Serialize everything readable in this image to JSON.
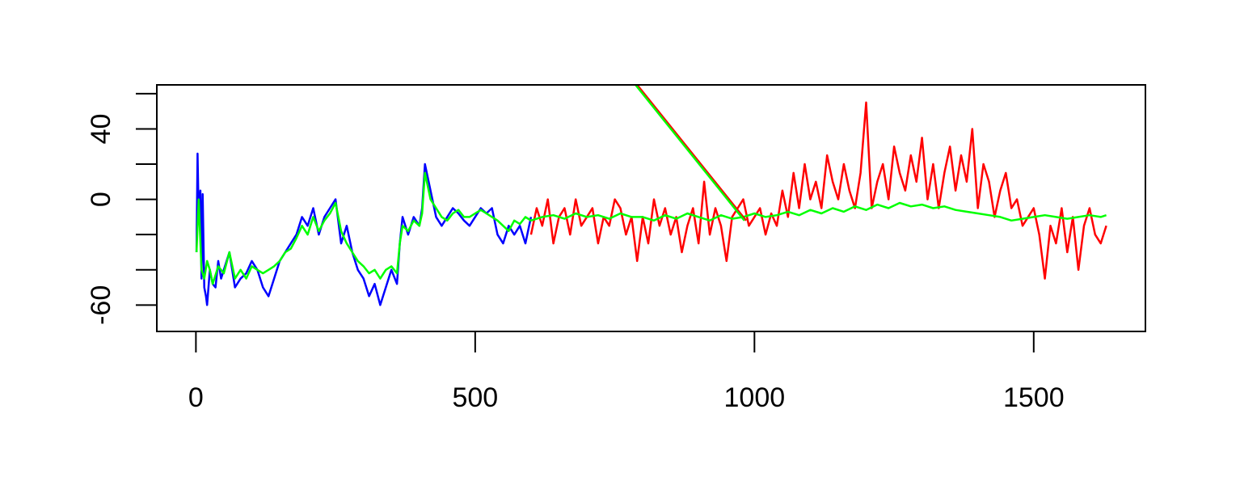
{
  "chart_data": {
    "type": "line",
    "title": "",
    "xlabel": "",
    "ylabel": "",
    "xlim": [
      -70,
      1700
    ],
    "ylim": [
      -75,
      65
    ],
    "x_ticks": [
      {
        "value": 0,
        "label": "0"
      },
      {
        "value": 500,
        "label": "500"
      },
      {
        "value": 1000,
        "label": "1000"
      },
      {
        "value": 1500,
        "label": "1500"
      }
    ],
    "y_ticks": [
      {
        "value": -60,
        "label": "-60",
        "labeled": true
      },
      {
        "value": -40,
        "label": "",
        "labeled": false
      },
      {
        "value": -20,
        "label": "",
        "labeled": false
      },
      {
        "value": 0,
        "label": "0",
        "labeled": true
      },
      {
        "value": 20,
        "label": "",
        "labeled": false
      },
      {
        "value": 40,
        "label": "40",
        "labeled": true
      },
      {
        "value": 60,
        "label": "",
        "labeled": false
      }
    ],
    "grid": false,
    "legend": "none",
    "series": [
      {
        "color": "#0000ff",
        "x": [
          1,
          3,
          5,
          8,
          10,
          12,
          15,
          18,
          20,
          25,
          30,
          35,
          40,
          45,
          50,
          60,
          70,
          80,
          90,
          100,
          110,
          120,
          130,
          140,
          150,
          160,
          170,
          180,
          190,
          200,
          210,
          220,
          230,
          240,
          250,
          260,
          270,
          280,
          290,
          300,
          310,
          320,
          330,
          340,
          350,
          360,
          365,
          370,
          380,
          390,
          400,
          405,
          410,
          420,
          430,
          440,
          450,
          460,
          470,
          480,
          490,
          500,
          510,
          520,
          530,
          540,
          550,
          560,
          570,
          580,
          590,
          600
        ],
        "y": [
          -30,
          26,
          -10,
          5,
          -45,
          3,
          -50,
          -55,
          -60,
          -40,
          -48,
          -50,
          -35,
          -45,
          -40,
          -30,
          -50,
          -45,
          -42,
          -35,
          -40,
          -50,
          -55,
          -45,
          -35,
          -30,
          -25,
          -20,
          -10,
          -15,
          -5,
          -20,
          -10,
          -5,
          0,
          -25,
          -15,
          -30,
          -40,
          -45,
          -55,
          -48,
          -60,
          -50,
          -40,
          -48,
          -25,
          -10,
          -20,
          -10,
          -15,
          -5,
          20,
          5,
          -10,
          -15,
          -10,
          -5,
          -8,
          -12,
          -15,
          -10,
          -5,
          -8,
          -5,
          -20,
          -25,
          -15,
          -20,
          -15,
          -25,
          -10
        ]
      },
      {
        "color": "#ff0000",
        "x": [
          600,
          610,
          620,
          630,
          640,
          650,
          660,
          670,
          680,
          690,
          700,
          710,
          720,
          730,
          740,
          750,
          760,
          770,
          780,
          790,
          800,
          810,
          820,
          830,
          840,
          850,
          860,
          870,
          880,
          890,
          900,
          910,
          920,
          930,
          940,
          950,
          960,
          970,
          980,
          990,
          1000,
          1010,
          1020,
          1030,
          1040,
          1050,
          1060,
          1070,
          1080,
          1090,
          1100,
          1110,
          1120,
          1130,
          1140,
          1150,
          1160,
          1170,
          1180,
          1190,
          1200,
          1210,
          1220,
          1230,
          1240,
          1250,
          1260,
          1270,
          1280,
          1290,
          1300,
          1310,
          1320,
          1330,
          1340,
          1350,
          1360,
          1370,
          1380,
          1390,
          1400,
          1410,
          1420,
          1430,
          1440,
          1450,
          1460,
          1470,
          1480,
          1490,
          1500,
          1510,
          1520,
          1530,
          1540,
          1550,
          1560,
          1570,
          1580,
          1590,
          1600,
          1610,
          1620,
          1630
        ],
        "y": [
          -20,
          -5,
          -15,
          0,
          -25,
          -10,
          -5,
          -20,
          0,
          -15,
          -10,
          -5,
          -25,
          -10,
          -15,
          0,
          -5,
          -20,
          -10,
          -35,
          -10,
          -25,
          0,
          -15,
          -5,
          -20,
          -10,
          -30,
          -15,
          -5,
          -25,
          10,
          -20,
          -5,
          -15,
          -35,
          -10,
          -5,
          0,
          -15,
          -10,
          -5,
          -20,
          -8,
          -15,
          5,
          -10,
          15,
          -5,
          20,
          0,
          10,
          -5,
          25,
          10,
          0,
          20,
          5,
          -5,
          15,
          55,
          -5,
          10,
          20,
          0,
          30,
          15,
          5,
          25,
          10,
          35,
          0,
          20,
          -5,
          15,
          30,
          5,
          25,
          10,
          40,
          -5,
          20,
          10,
          -10,
          5,
          15,
          -5,
          0,
          -15,
          -10,
          -5,
          -20,
          -45,
          -15,
          -25,
          -5,
          -30,
          -10,
          -40,
          -15,
          -5,
          -20,
          -25,
          -15
        ]
      },
      {
        "color": "#00ff00",
        "x": [
          1,
          5,
          10,
          15,
          20,
          25,
          30,
          40,
          50,
          60,
          70,
          80,
          90,
          100,
          110,
          120,
          130,
          140,
          150,
          160,
          170,
          180,
          190,
          200,
          210,
          220,
          230,
          240,
          250,
          260,
          270,
          280,
          290,
          300,
          310,
          320,
          330,
          340,
          350,
          360,
          365,
          370,
          380,
          390,
          400,
          405,
          410,
          420,
          430,
          440,
          450,
          460,
          470,
          480,
          490,
          500,
          510,
          520,
          530,
          540,
          550,
          560,
          570,
          580,
          590,
          600,
          620,
          640,
          660,
          680,
          700,
          720,
          740,
          760,
          780,
          800,
          820,
          840,
          860,
          880,
          900,
          920,
          940,
          960,
          980,
          1000,
          1020,
          1040,
          1060,
          1080,
          1100,
          1120,
          1140,
          1160,
          1180,
          1200,
          1220,
          1240,
          1260,
          1280,
          1300,
          1320,
          1340,
          1360,
          1380,
          1400,
          1420,
          1440,
          1460,
          1480,
          1500,
          1520,
          1540,
          1560,
          1580,
          1600,
          1620,
          1630
        ],
        "y": [
          -30,
          0,
          -40,
          -45,
          -35,
          -40,
          -48,
          -38,
          -42,
          -30,
          -45,
          -40,
          -45,
          -38,
          -40,
          -42,
          -40,
          -38,
          -35,
          -30,
          -28,
          -22,
          -15,
          -20,
          -10,
          -18,
          -12,
          -8,
          -2,
          -18,
          -25,
          -30,
          -35,
          -38,
          -42,
          -40,
          -45,
          -40,
          -38,
          -42,
          -25,
          -15,
          -18,
          -12,
          -15,
          -8,
          15,
          0,
          -5,
          -10,
          -12,
          -8,
          -6,
          -10,
          -10,
          -8,
          -6,
          -8,
          -10,
          -12,
          -15,
          -18,
          -12,
          -14,
          -10,
          -12,
          -10,
          -9,
          -11,
          -8,
          -10,
          -9,
          -11,
          -8,
          -10,
          -10,
          -12,
          -9,
          -11,
          -8,
          -10,
          -12,
          -9,
          -11,
          -10,
          -8,
          -10,
          -9,
          -7,
          -9,
          -6,
          -8,
          -5,
          -7,
          -4,
          -6,
          -3,
          -5,
          -2,
          -4,
          -3,
          -5,
          -4,
          -6,
          -7,
          -8,
          -9,
          -10,
          -12,
          -11,
          -10,
          -9,
          -10,
          -11,
          -10,
          -9,
          -10,
          -9
        ]
      },
      {
        "color": "#ff0000",
        "x": [
          790,
          985
        ],
        "y": [
          65,
          -12
        ]
      },
      {
        "color": "#00ff00",
        "x": [
          787,
          982
        ],
        "y": [
          65,
          -12
        ]
      }
    ]
  }
}
